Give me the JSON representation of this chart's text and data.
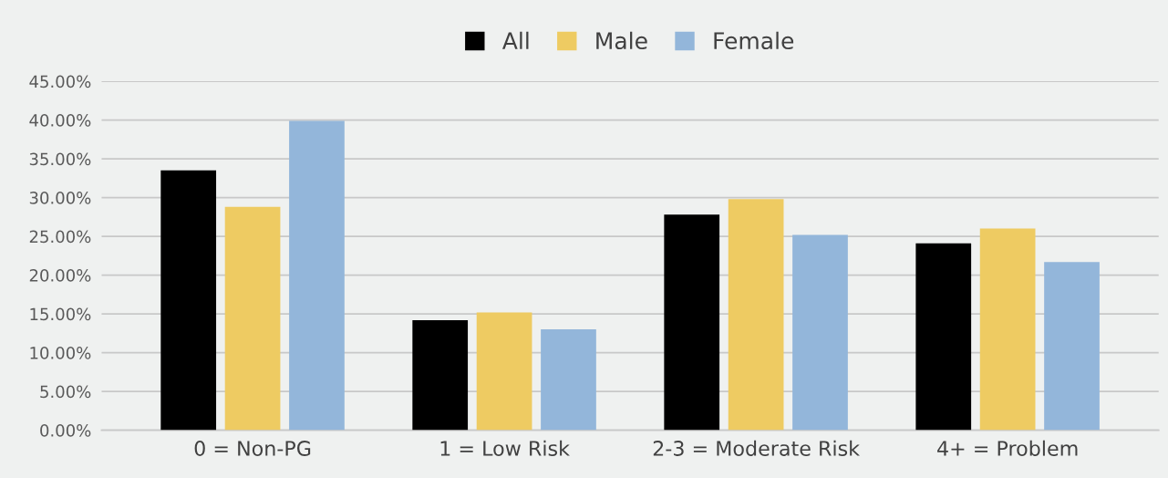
{
  "chart_data": {
    "type": "bar",
    "categories": [
      "0 = Non-PG",
      "1 = Low Risk",
      "2-3 = Moderate Risk",
      "4+ = Problem"
    ],
    "series": [
      {
        "name": "All",
        "color": "#000000",
        "values": [
          33.5,
          14.2,
          27.8,
          24.1
        ]
      },
      {
        "name": "Male",
        "color": "#eecb62",
        "values": [
          28.8,
          15.2,
          29.8,
          26.0
        ]
      },
      {
        "name": "Female",
        "color": "#93b6da",
        "values": [
          39.9,
          13.0,
          25.2,
          21.7
        ]
      }
    ],
    "ylim": [
      0,
      45
    ],
    "yticks": [
      {
        "value": 0,
        "label": "0.00%"
      },
      {
        "value": 5,
        "label": "5.00%"
      },
      {
        "value": 10,
        "label": "10.00%"
      },
      {
        "value": 15,
        "label": "15.00%"
      },
      {
        "value": 20,
        "label": "20.00%"
      },
      {
        "value": 25,
        "label": "25.00%"
      },
      {
        "value": 30,
        "label": "30.00%"
      },
      {
        "value": 35,
        "label": "35.00%"
      },
      {
        "value": 40,
        "label": "40.00%"
      },
      {
        "value": 45,
        "label": "45.00%"
      }
    ],
    "grid": "y",
    "legend": "top"
  }
}
